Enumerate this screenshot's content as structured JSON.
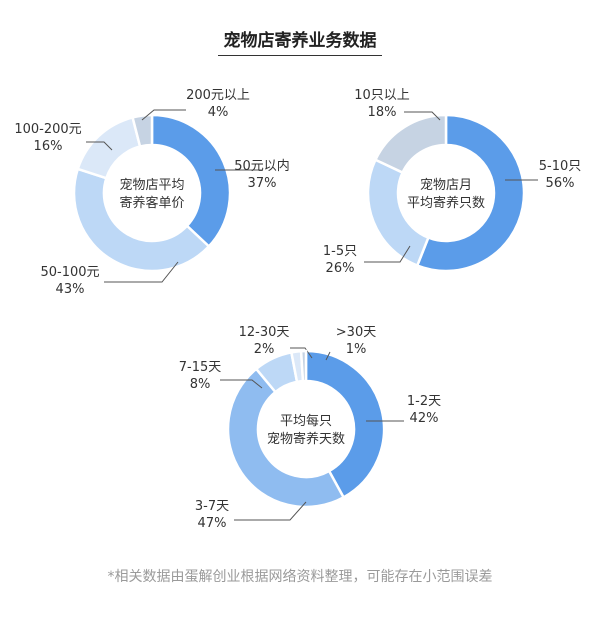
{
  "title": "宠物店寄养业务数据",
  "footnote": "*相关数据由蛋解创业根据网络资料整理，可能存在小范围误差",
  "colors": {
    "dark": "#5b9ce9",
    "mid": "#8fbcf0",
    "light": "#bdd8f6",
    "pale": "#dbe8f8",
    "grey": "#c6d3e3",
    "line": "#555555"
  },
  "chart_data": [
    {
      "type": "pie",
      "center_label": [
        "宠物店平均",
        "寄养客单价"
      ],
      "slices": [
        {
          "name": "50元以内",
          "value": 37,
          "label": "37%",
          "color": "#5b9ce9"
        },
        {
          "name": "50-100元",
          "value": 43,
          "label": "43%",
          "color": "#bdd8f6"
        },
        {
          "name": "100-200元",
          "value": 16,
          "label": "16%",
          "color": "#dbe8f8"
        },
        {
          "name": "200元以上",
          "value": 4,
          "label": "4%",
          "color": "#c6d3e3"
        }
      ]
    },
    {
      "type": "pie",
      "center_label": [
        "宠物店月",
        "平均寄养只数"
      ],
      "slices": [
        {
          "name": "5-10只",
          "value": 56,
          "label": "56%",
          "color": "#5b9ce9"
        },
        {
          "name": "1-5只",
          "value": 26,
          "label": "26%",
          "color": "#bdd8f6"
        },
        {
          "name": "10只以上",
          "value": 18,
          "label": "18%",
          "color": "#c6d3e3"
        }
      ]
    },
    {
      "type": "pie",
      "center_label": [
        "平均每只",
        "宠物寄养天数"
      ],
      "slices": [
        {
          "name": "1-2天",
          "value": 42,
          "label": "42%",
          "color": "#5b9ce9"
        },
        {
          "name": "3-7天",
          "value": 47,
          "label": "47%",
          "color": "#8fbcf0"
        },
        {
          "name": "7-15天",
          "value": 8,
          "label": "8%",
          "color": "#bdd8f6"
        },
        {
          "name": "12-30天",
          "value": 2,
          "label": "2%",
          "color": "#dbe8f8"
        },
        {
          "name": ">30天",
          "value": 1,
          "label": "1%",
          "color": "#c6d3e3"
        }
      ]
    }
  ]
}
